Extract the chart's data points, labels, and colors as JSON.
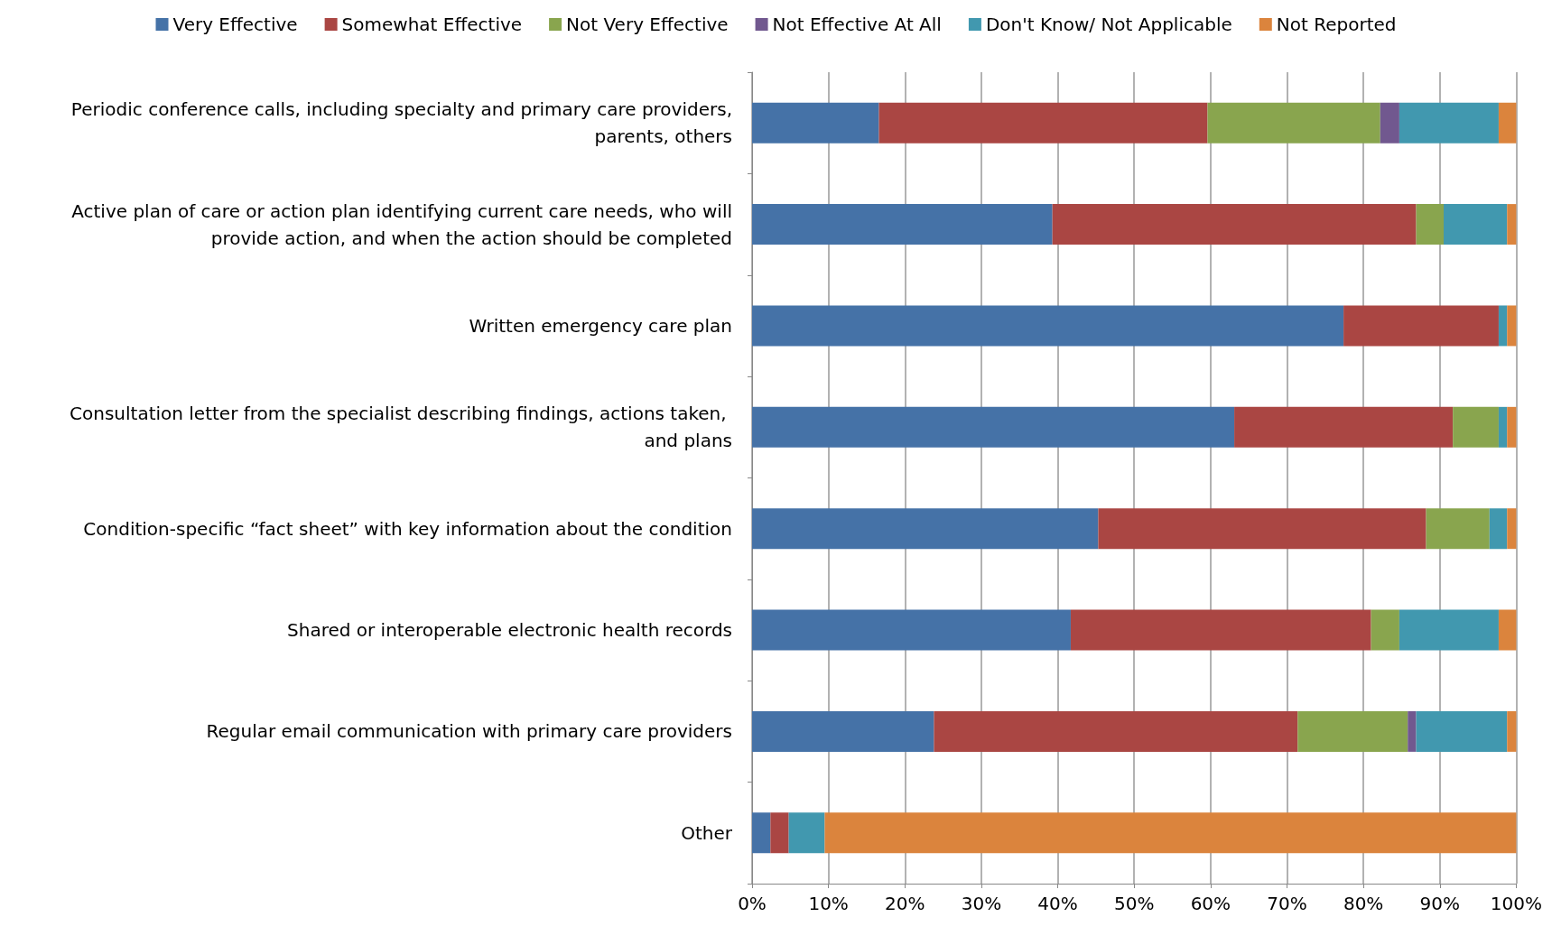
{
  "chart_data": {
    "type": "bar",
    "orientation": "horizontal",
    "stacked": true,
    "legend": "top",
    "grid": "x",
    "categories": [
      "Periodic conference calls, including specialty and primary care providers, parents, others",
      "Active plan of care or action plan identifying current care needs, who will provide action, and when the action should be completed",
      "Written emergency care plan",
      "Consultation letter from the specialist describing findings, actions taken, and plans",
      "Condition-specific “fact sheet” with key information about the condition",
      "Shared or interoperable electronic health records",
      "Regular email communication with primary care providers",
      "Other"
    ],
    "series": [
      {
        "name": "Very Effective",
        "color": "#4572a7",
        "values": [
          16.6,
          39.3,
          77.4,
          63.1,
          45.3,
          41.7,
          23.8,
          2.4
        ]
      },
      {
        "name": "Somewhat Effective",
        "color": "#aa4643",
        "values": [
          43.0,
          47.6,
          20.3,
          28.6,
          42.9,
          39.3,
          47.6,
          2.4
        ]
      },
      {
        "name": "Not Very Effective",
        "color": "#89a54e",
        "values": [
          22.6,
          3.6,
          0,
          6.0,
          8.3,
          3.7,
          14.4,
          0
        ]
      },
      {
        "name": "Not Effective At All",
        "color": "#71588f",
        "values": [
          2.5,
          0,
          0,
          0,
          0,
          0,
          1.1,
          0
        ]
      },
      {
        "name": "Don't Know/ Not Applicable",
        "color": "#4198af",
        "values": [
          13.0,
          8.3,
          1.1,
          1.1,
          2.3,
          13.0,
          11.9,
          4.7
        ]
      },
      {
        "name": "Not Reported",
        "color": "#db843d",
        "values": [
          2.3,
          1.2,
          1.2,
          1.2,
          1.2,
          2.3,
          1.2,
          90.5
        ]
      }
    ],
    "xlim": [
      0,
      100
    ],
    "xticks": [
      {
        "value": 0,
        "label": "0%"
      },
      {
        "value": 10,
        "label": "10%"
      },
      {
        "value": 20,
        "label": "20%"
      },
      {
        "value": 30,
        "label": "30%"
      },
      {
        "value": 40,
        "label": "40%"
      },
      {
        "value": 50,
        "label": "50%"
      },
      {
        "value": 60,
        "label": "60%"
      },
      {
        "value": 70,
        "label": "70%"
      },
      {
        "value": 80,
        "label": "80%"
      },
      {
        "value": 90,
        "label": "90%"
      },
      {
        "value": 100,
        "label": "100%"
      }
    ]
  }
}
